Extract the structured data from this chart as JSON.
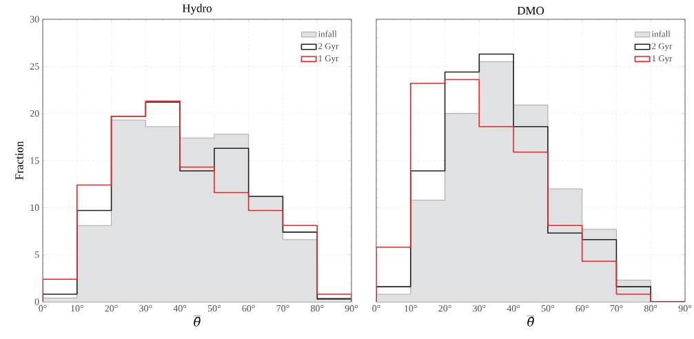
{
  "chart_data": [
    {
      "type": "histogram",
      "title": "Hydro",
      "xlabel": "θ̄",
      "ylabel": "Fraction",
      "bins": [
        0,
        10,
        20,
        30,
        40,
        50,
        60,
        70,
        80,
        90
      ],
      "series": [
        {
          "name": "infall",
          "color": "#e0e1e3",
          "values": [
            0.4,
            8.1,
            19.3,
            18.6,
            17.4,
            17.8,
            11.2,
            6.6,
            0.4
          ]
        },
        {
          "name": "2 Gyr",
          "color": "#222222",
          "values": [
            0.8,
            9.7,
            19.7,
            21.2,
            13.9,
            16.3,
            11.2,
            7.4,
            0.3
          ]
        },
        {
          "name": "1 Gyr",
          "color": "#ee2222",
          "values": [
            2.4,
            12.4,
            19.7,
            21.3,
            14.3,
            11.6,
            9.7,
            8.1,
            0.8
          ]
        }
      ],
      "xlim": [
        0,
        90
      ],
      "ylim": [
        0,
        30
      ],
      "xticks": [
        {
          "value": 0,
          "label": "0°"
        },
        {
          "value": 10,
          "label": "10°"
        },
        {
          "value": 20,
          "label": "20°"
        },
        {
          "value": 30,
          "label": "30°"
        },
        {
          "value": 40,
          "label": "40°"
        },
        {
          "value": 50,
          "label": "50°"
        },
        {
          "value": 60,
          "label": "60°"
        },
        {
          "value": 70,
          "label": "70°"
        },
        {
          "value": 80,
          "label": "80°"
        },
        {
          "value": 90,
          "label": "90°"
        }
      ],
      "yticks": [
        0,
        5,
        10,
        15,
        20,
        25,
        30
      ],
      "grid": true,
      "legend": "top right"
    },
    {
      "type": "histogram",
      "title": "DMO",
      "xlabel": "θ̄",
      "bins": [
        0,
        10,
        20,
        30,
        40,
        50,
        60,
        70,
        80,
        90
      ],
      "series": [
        {
          "name": "infall",
          "color": "#e0e1e3",
          "values": [
            0.8,
            10.8,
            20.0,
            25.5,
            20.9,
            12.0,
            7.7,
            2.3,
            0
          ]
        },
        {
          "name": "2 Gyr",
          "color": "#222222",
          "values": [
            1.6,
            13.9,
            24.4,
            26.3,
            18.6,
            7.3,
            6.6,
            1.6,
            0
          ]
        },
        {
          "name": "1 Gyr",
          "color": "#ee2222",
          "values": [
            5.8,
            23.2,
            23.6,
            18.6,
            15.9,
            8.1,
            4.3,
            0.8,
            0
          ]
        }
      ],
      "xlim": [
        0,
        90
      ],
      "ylim": [
        0,
        30
      ],
      "xticks": [
        {
          "value": 0,
          "label": "0°"
        },
        {
          "value": 10,
          "label": "10°"
        },
        {
          "value": 20,
          "label": "20°"
        },
        {
          "value": 30,
          "label": "30°"
        },
        {
          "value": 40,
          "label": "40°"
        },
        {
          "value": 50,
          "label": "50°"
        },
        {
          "value": 60,
          "label": "60°"
        },
        {
          "value": 70,
          "label": "70°"
        },
        {
          "value": 80,
          "label": "80°"
        },
        {
          "value": 90,
          "label": "90°"
        }
      ],
      "yticks": [
        0,
        5,
        10,
        15,
        20,
        25,
        30
      ],
      "grid": true,
      "legend": "top right",
      "tick_labels": "x"
    }
  ]
}
